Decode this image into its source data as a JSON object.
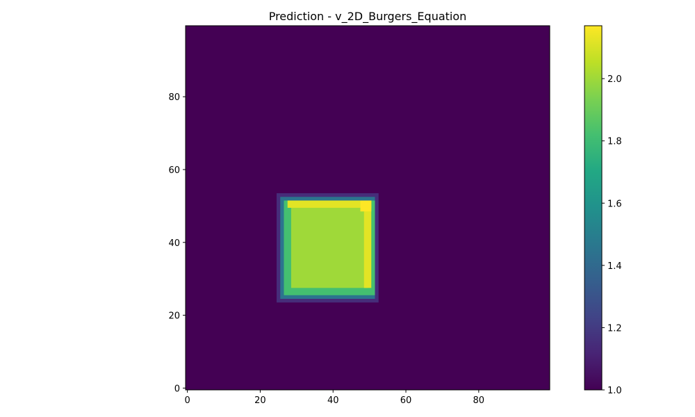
{
  "chart_data": {
    "type": "heatmap",
    "title": "Prediction - v_2D_Burgers_Equation",
    "xlabel": "",
    "ylabel": "",
    "grid": false,
    "colormap": "viridis",
    "grid_size": [
      100,
      100
    ],
    "origin": "lower",
    "xlim": [
      -0.5,
      99.5
    ],
    "ylim": [
      -0.5,
      99.5
    ],
    "x_ticks": [
      0,
      20,
      40,
      60,
      80
    ],
    "y_ticks": [
      0,
      20,
      40,
      60,
      80
    ],
    "x_tick_labels": [
      "0",
      "20",
      "40",
      "60",
      "80"
    ],
    "y_tick_labels": [
      "0",
      "20",
      "40",
      "60",
      "80"
    ],
    "background_value": 1.0,
    "features": [
      {
        "name": "outer-halo",
        "x_range": [
          25,
          52
        ],
        "y_range": [
          24,
          53
        ],
        "value": 1.15
      },
      {
        "name": "edge-ring",
        "x_range": [
          26,
          51
        ],
        "y_range": [
          25,
          52
        ],
        "value": 1.45
      },
      {
        "name": "inner-ring",
        "x_range": [
          27,
          51
        ],
        "y_range": [
          26,
          51
        ],
        "value": 1.82
      },
      {
        "name": "plateau",
        "x_range": [
          29,
          49
        ],
        "y_range": [
          28,
          50
        ],
        "value": 2.0
      },
      {
        "name": "top-ridge",
        "x_range": [
          28,
          50
        ],
        "y_range": [
          50,
          51
        ],
        "value": 2.12
      },
      {
        "name": "right-ridge",
        "x_range": [
          49,
          50
        ],
        "y_range": [
          28,
          51
        ],
        "value": 2.12
      },
      {
        "name": "corner-peak",
        "x_range": [
          48,
          50
        ],
        "y_range": [
          49,
          51
        ],
        "value": 2.17
      }
    ],
    "colorbar": {
      "vmin": 1.0,
      "vmax": 2.17,
      "ticks": [
        1.0,
        1.2,
        1.4,
        1.6,
        1.8,
        2.0
      ],
      "tick_labels": [
        "1.0",
        "1.2",
        "1.4",
        "1.6",
        "1.8",
        "2.0"
      ]
    }
  }
}
